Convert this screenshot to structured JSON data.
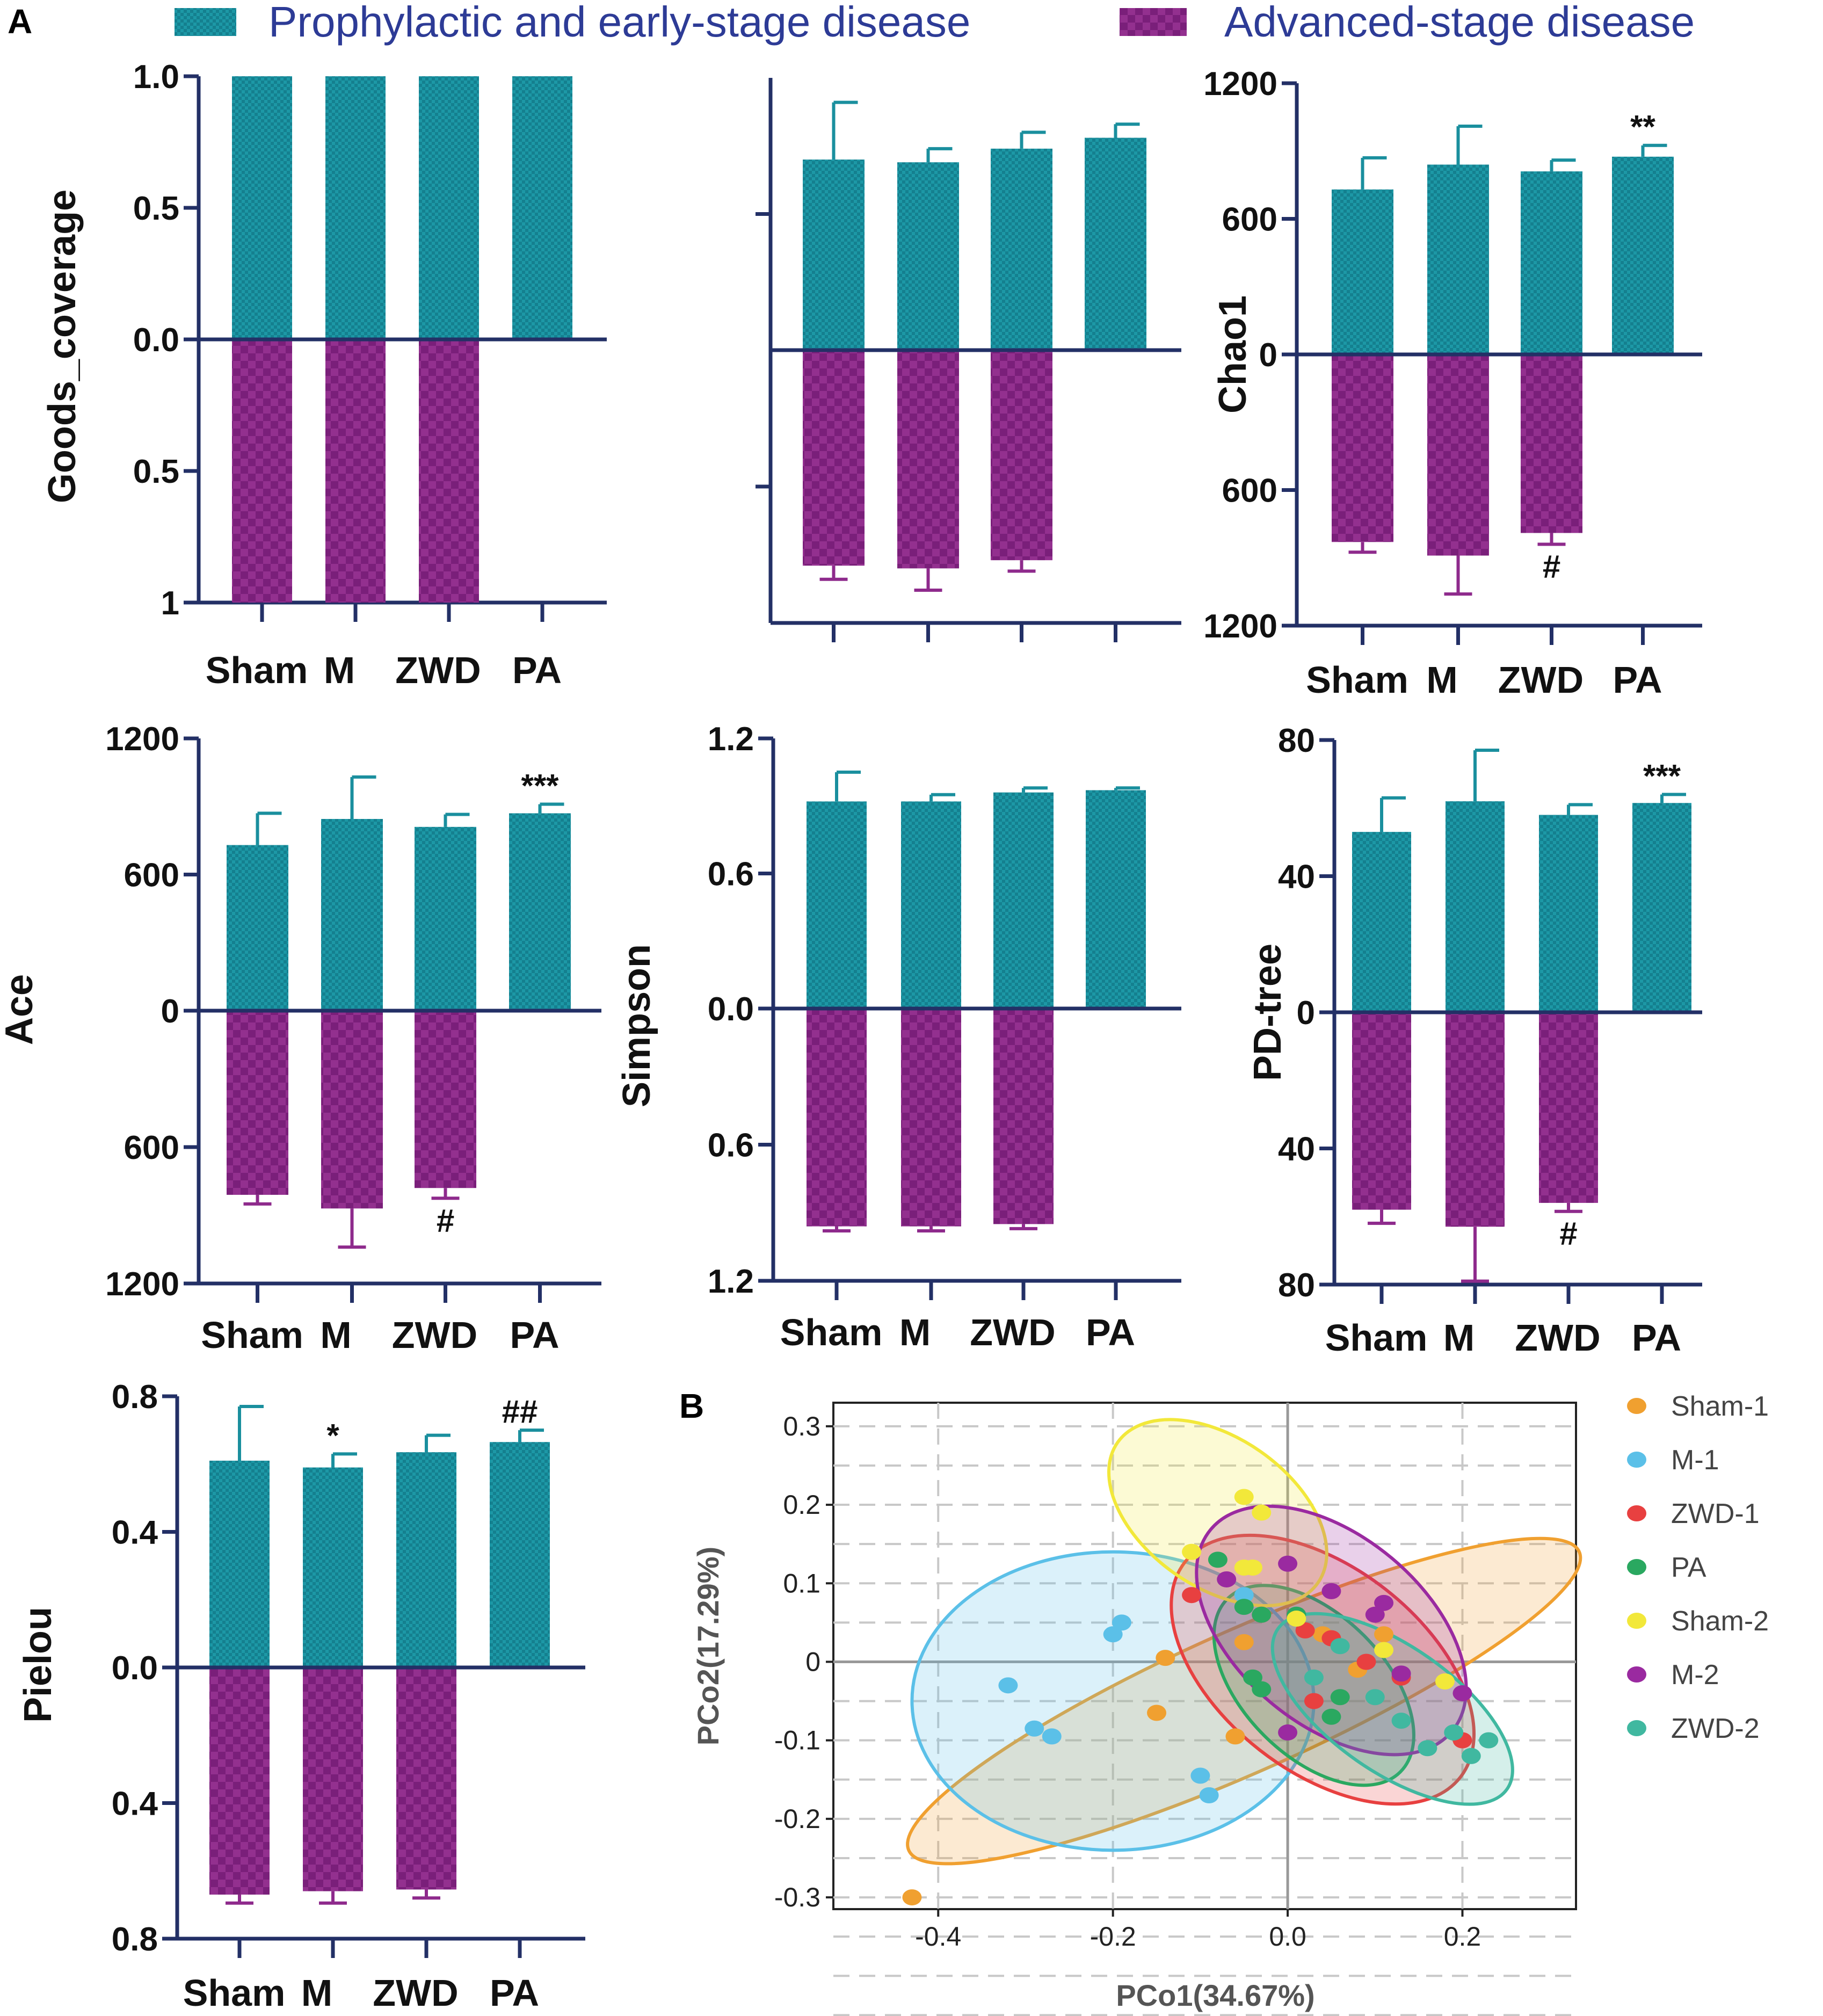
{
  "panel_a_label": "A",
  "panel_b_label": "B",
  "legend": {
    "top": {
      "label": "Prophylactic and  early-stage disease",
      "color": "#1a8f9e"
    },
    "bottom": {
      "label": "Advanced-stage disease",
      "color": "#8e2a8c"
    }
  },
  "chart_data": [
    {
      "type": "bar",
      "panel": "Goods_coverage",
      "ylabel": "Goods_coverage",
      "categories": [
        "Sham",
        "M",
        "ZWD",
        "PA"
      ],
      "ylim_top": 1.0,
      "ylim_bottom": 1.0,
      "top_ticks": [
        {
          "v": 1.0,
          "label": "1.0"
        },
        {
          "v": 0.5,
          "label": "0.5"
        },
        {
          "v": 0,
          "label": "0.0"
        }
      ],
      "bottom_ticks": [
        {
          "v": 0.5,
          "label": "0.5"
        },
        {
          "v": 1.0,
          "label": "1"
        }
      ],
      "series": [
        {
          "name": "Prophylactic and early-stage disease",
          "values": [
            1.0,
            1.0,
            1.0,
            1.0
          ],
          "errors": [
            0,
            0,
            0,
            0
          ]
        },
        {
          "name": "Advanced-stage disease",
          "values": [
            1.0,
            1.0,
            1.0,
            null
          ],
          "errors": [
            0,
            0,
            0,
            null
          ]
        }
      ],
      "annotations": []
    },
    {
      "type": "bar",
      "panel": "unlabeled",
      "ylabel": "",
      "categories": [
        "",
        "",
        "",
        ""
      ],
      "ylim_top": 1.0,
      "ylim_bottom": 1.0,
      "top_ticks": [
        {
          "v": 0.5,
          "label": ""
        }
      ],
      "bottom_ticks": [
        {
          "v": 0.5,
          "label": ""
        }
      ],
      "series": [
        {
          "name": "Prophylactic and early-stage disease",
          "values": [
            0.7,
            0.69,
            0.74,
            0.78
          ],
          "errors": [
            0.21,
            0.05,
            0.06,
            0.05
          ]
        },
        {
          "name": "Advanced-stage disease",
          "values": [
            0.79,
            0.8,
            0.77,
            null
          ],
          "errors": [
            0.05,
            0.08,
            0.04,
            null
          ]
        }
      ],
      "annotations": []
    },
    {
      "type": "bar",
      "panel": "Chao1",
      "ylabel": "Chao1",
      "categories": [
        "Sham",
        "M",
        "ZWD",
        "PA"
      ],
      "ylim_top": 1200,
      "ylim_bottom": 1200,
      "top_ticks": [
        {
          "v": 1200,
          "label": "1200"
        },
        {
          "v": 600,
          "label": "600"
        },
        {
          "v": 0,
          "label": "0"
        }
      ],
      "bottom_ticks": [
        {
          "v": 600,
          "label": "600"
        },
        {
          "v": 1200,
          "label": "1200"
        }
      ],
      "series": [
        {
          "name": "Prophylactic and early-stage disease",
          "values": [
            730,
            840,
            810,
            875
          ],
          "errors": [
            140,
            170,
            50,
            50
          ]
        },
        {
          "name": "Advanced-stage disease",
          "values": [
            830,
            890,
            790,
            null
          ],
          "errors": [
            45,
            170,
            50,
            null
          ]
        }
      ],
      "annotations": [
        {
          "cat": "PA",
          "side": "top",
          "text": "**"
        },
        {
          "cat": "ZWD",
          "side": "bottom",
          "text": "#"
        }
      ]
    },
    {
      "type": "bar",
      "panel": "Ace",
      "ylabel": "Ace",
      "categories": [
        "Sham",
        "M",
        "ZWD",
        "PA"
      ],
      "ylim_top": 1200,
      "ylim_bottom": 1200,
      "top_ticks": [
        {
          "v": 1200,
          "label": "1200"
        },
        {
          "v": 600,
          "label": "600"
        },
        {
          "v": 0,
          "label": "0"
        }
      ],
      "bottom_ticks": [
        {
          "v": 600,
          "label": "600"
        },
        {
          "v": 1200,
          "label": "1200"
        }
      ],
      "series": [
        {
          "name": "Prophylactic and early-stage disease",
          "values": [
            730,
            845,
            810,
            870
          ],
          "errors": [
            140,
            185,
            55,
            40
          ]
        },
        {
          "name": "Advanced-stage disease",
          "values": [
            810,
            870,
            780,
            null
          ],
          "errors": [
            40,
            170,
            45,
            null
          ]
        }
      ],
      "annotations": [
        {
          "cat": "PA",
          "side": "top",
          "text": "***"
        },
        {
          "cat": "ZWD",
          "side": "bottom",
          "text": "#"
        }
      ]
    },
    {
      "type": "bar",
      "panel": "Simpson",
      "ylabel": "Simpson",
      "categories": [
        "Sham",
        "M",
        "ZWD",
        "PA"
      ],
      "ylim_top": 1.2,
      "ylim_bottom": 1.2,
      "top_ticks": [
        {
          "v": 1.2,
          "label": "1.2"
        },
        {
          "v": 0.6,
          "label": "0.6"
        },
        {
          "v": 0,
          "label": "0.0"
        }
      ],
      "bottom_ticks": [
        {
          "v": 0.6,
          "label": "0.6"
        },
        {
          "v": 1.2,
          "label": "1.2"
        }
      ],
      "series": [
        {
          "name": "Prophylactic and early-stage disease",
          "values": [
            0.92,
            0.92,
            0.96,
            0.97
          ],
          "errors": [
            0.13,
            0.03,
            0.02,
            0.01
          ]
        },
        {
          "name": "Advanced-stage disease",
          "values": [
            0.96,
            0.96,
            0.95,
            null
          ],
          "errors": [
            0.02,
            0.02,
            0.02,
            null
          ]
        }
      ],
      "annotations": []
    },
    {
      "type": "bar",
      "panel": "PD-tree",
      "ylabel": "PD-tree",
      "categories": [
        "Sham",
        "M",
        "ZWD",
        "PA"
      ],
      "ylim_top": 80,
      "ylim_bottom": 80,
      "top_ticks": [
        {
          "v": 80,
          "label": "80"
        },
        {
          "v": 40,
          "label": "40"
        },
        {
          "v": 0,
          "label": "0"
        }
      ],
      "bottom_ticks": [
        {
          "v": 40,
          "label": "40"
        },
        {
          "v": 80,
          "label": "80"
        }
      ],
      "series": [
        {
          "name": "Prophylactic and early-stage disease",
          "values": [
            53,
            62,
            58,
            61.5
          ],
          "errors": [
            10,
            15,
            3,
            2.5
          ]
        },
        {
          "name": "Advanced-stage disease",
          "values": [
            58,
            63,
            56,
            null
          ],
          "errors": [
            4,
            16,
            2.5,
            null
          ]
        }
      ],
      "annotations": [
        {
          "cat": "PA",
          "side": "top",
          "text": "***"
        },
        {
          "cat": "ZWD",
          "side": "bottom",
          "text": "#"
        }
      ]
    },
    {
      "type": "bar",
      "panel": "Pielou",
      "ylabel": "Pielou",
      "categories": [
        "Sham",
        "M",
        "ZWD",
        "PA"
      ],
      "ylim_top": 0.8,
      "ylim_bottom": 0.8,
      "top_ticks": [
        {
          "v": 0.8,
          "label": "0.8"
        },
        {
          "v": 0.4,
          "label": "0.4"
        },
        {
          "v": 0,
          "label": "0.0"
        }
      ],
      "bottom_ticks": [
        {
          "v": 0.4,
          "label": "0.4"
        },
        {
          "v": 0.8,
          "label": "0.8"
        }
      ],
      "series": [
        {
          "name": "Prophylactic and early-stage disease",
          "values": [
            0.61,
            0.59,
            0.635,
            0.665
          ],
          "errors": [
            0.16,
            0.04,
            0.05,
            0.035
          ]
        },
        {
          "name": "Advanced-stage disease",
          "values": [
            0.67,
            0.66,
            0.655,
            null
          ],
          "errors": [
            0.025,
            0.035,
            0.025,
            null
          ]
        }
      ],
      "annotations": [
        {
          "cat": "M",
          "side": "top",
          "text": "*"
        },
        {
          "cat": "PA",
          "side": "top",
          "text": "##"
        }
      ]
    },
    {
      "type": "scatter",
      "panel": "PCoA",
      "xlabel": "PCo1(34.67%)",
      "ylabel": "PCo2(17.29%)",
      "xlim": [
        -0.52,
        0.33
      ],
      "ylim": [
        -0.315,
        0.33
      ],
      "x_ticks": [
        {
          "v": -0.4,
          "label": "-0.4"
        },
        {
          "v": -0.2,
          "label": "-0.2"
        },
        {
          "v": 0.0,
          "label": "0.0"
        },
        {
          "v": 0.2,
          "label": "0.2"
        }
      ],
      "y_ticks": [
        {
          "v": 0.3,
          "label": "0.3"
        },
        {
          "v": 0.2,
          "label": "0.2"
        },
        {
          "v": 0.1,
          "label": "0.1"
        },
        {
          "v": 0,
          "label": "0"
        },
        {
          "v": -0.1,
          "label": "-0.1"
        },
        {
          "v": -0.2,
          "label": "-0.2"
        },
        {
          "v": -0.3,
          "label": "-0.3"
        }
      ],
      "groups": [
        {
          "name": "Sham-1",
          "color": "#f0a030",
          "ellipse": {
            "cx": -0.05,
            "cy": -0.05,
            "rx": 0.42,
            "ry": 0.09,
            "angle_deg": 24
          },
          "points": [
            [
              -0.43,
              -0.3
            ],
            [
              -0.15,
              -0.065
            ],
            [
              -0.14,
              0.005
            ],
            [
              -0.06,
              -0.095
            ],
            [
              -0.05,
              0.025
            ],
            [
              0.04,
              0.035
            ],
            [
              0.11,
              0.035
            ],
            [
              0.08,
              -0.01
            ]
          ]
        },
        {
          "name": "M-1",
          "color": "#5bc0e8",
          "ellipse": {
            "cx": -0.2,
            "cy": -0.05,
            "rx": 0.23,
            "ry": 0.19,
            "angle_deg": 0
          },
          "points": [
            [
              -0.32,
              -0.03
            ],
            [
              -0.29,
              -0.085
            ],
            [
              -0.27,
              -0.095
            ],
            [
              -0.2,
              0.035
            ],
            [
              -0.19,
              0.05
            ],
            [
              -0.1,
              -0.145
            ],
            [
              -0.09,
              -0.17
            ],
            [
              -0.05,
              0.085
            ]
          ]
        },
        {
          "name": "ZWD-1",
          "color": "#e84040",
          "ellipse": {
            "cx": 0.04,
            "cy": -0.01,
            "rx": 0.2,
            "ry": 0.13,
            "angle_deg": -38
          },
          "points": [
            [
              -0.11,
              0.085
            ],
            [
              -0.03,
              0.06
            ],
            [
              0.02,
              0.04
            ],
            [
              0.05,
              0.03
            ],
            [
              0.09,
              0.0
            ],
            [
              0.13,
              -0.02
            ],
            [
              0.2,
              -0.1
            ],
            [
              0.03,
              -0.05
            ]
          ]
        },
        {
          "name": "PA",
          "color": "#2aa860",
          "ellipse": {
            "cx": 0.03,
            "cy": -0.03,
            "rx": 0.14,
            "ry": 0.09,
            "angle_deg": -45
          },
          "points": [
            [
              -0.08,
              0.13
            ],
            [
              -0.05,
              0.07
            ],
            [
              -0.03,
              0.06
            ],
            [
              -0.04,
              -0.02
            ],
            [
              -0.03,
              -0.035
            ],
            [
              0.01,
              0.06
            ],
            [
              0.05,
              -0.07
            ],
            [
              0.06,
              -0.045
            ]
          ]
        },
        {
          "name": "Sham-2",
          "color": "#f2e83a",
          "ellipse": {
            "cx": -0.08,
            "cy": 0.19,
            "rx": 0.14,
            "ry": 0.095,
            "angle_deg": -35
          },
          "points": [
            [
              -0.05,
              0.21
            ],
            [
              -0.03,
              0.19
            ],
            [
              -0.11,
              0.14
            ],
            [
              -0.05,
              0.12
            ],
            [
              -0.04,
              0.12
            ],
            [
              0.01,
              0.055
            ],
            [
              0.11,
              0.015
            ],
            [
              0.18,
              -0.025
            ]
          ]
        },
        {
          "name": "M-2",
          "color": "#9a2aa0",
          "ellipse": {
            "cx": 0.05,
            "cy": 0.04,
            "rx": 0.18,
            "ry": 0.12,
            "angle_deg": -40
          },
          "points": [
            [
              -0.07,
              0.105
            ],
            [
              0.0,
              0.125
            ],
            [
              0.05,
              0.09
            ],
            [
              0.1,
              0.06
            ],
            [
              0.11,
              0.075
            ],
            [
              0.0,
              -0.09
            ],
            [
              0.13,
              -0.015
            ],
            [
              0.2,
              -0.04
            ]
          ]
        },
        {
          "name": "ZWD-2",
          "color": "#40b8a0",
          "ellipse": {
            "cx": 0.12,
            "cy": -0.06,
            "rx": 0.16,
            "ry": 0.08,
            "angle_deg": -35
          },
          "points": [
            [
              0.03,
              -0.02
            ],
            [
              0.06,
              0.02
            ],
            [
              0.1,
              -0.045
            ],
            [
              0.13,
              -0.075
            ],
            [
              0.16,
              -0.11
            ],
            [
              0.19,
              -0.09
            ],
            [
              0.21,
              -0.12
            ],
            [
              0.23,
              -0.1
            ]
          ]
        }
      ]
    }
  ]
}
